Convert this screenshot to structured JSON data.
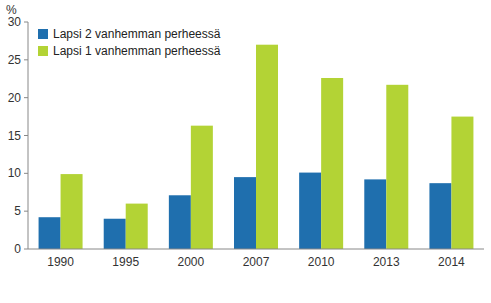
{
  "chart_data": {
    "type": "bar",
    "y_label": "%",
    "categories": [
      "1990",
      "1995",
      "2000",
      "2007",
      "2010",
      "2013",
      "2014"
    ],
    "series": [
      {
        "name": "Lapsi 2 vanhemman perheessä",
        "color": "#1f6fae",
        "values": [
          4.2,
          4.0,
          7.1,
          9.5,
          10.1,
          9.2,
          8.7
        ]
      },
      {
        "name": "Lapsi 1 vanhemman perheessä",
        "color": "#b3d335",
        "values": [
          9.9,
          6.0,
          16.3,
          27.0,
          22.6,
          21.7,
          17.5
        ]
      }
    ],
    "ylim": [
      0,
      30
    ],
    "yticks": [
      0,
      5,
      10,
      15,
      20,
      25,
      30
    ],
    "grid": false,
    "legend": "upper left"
  }
}
